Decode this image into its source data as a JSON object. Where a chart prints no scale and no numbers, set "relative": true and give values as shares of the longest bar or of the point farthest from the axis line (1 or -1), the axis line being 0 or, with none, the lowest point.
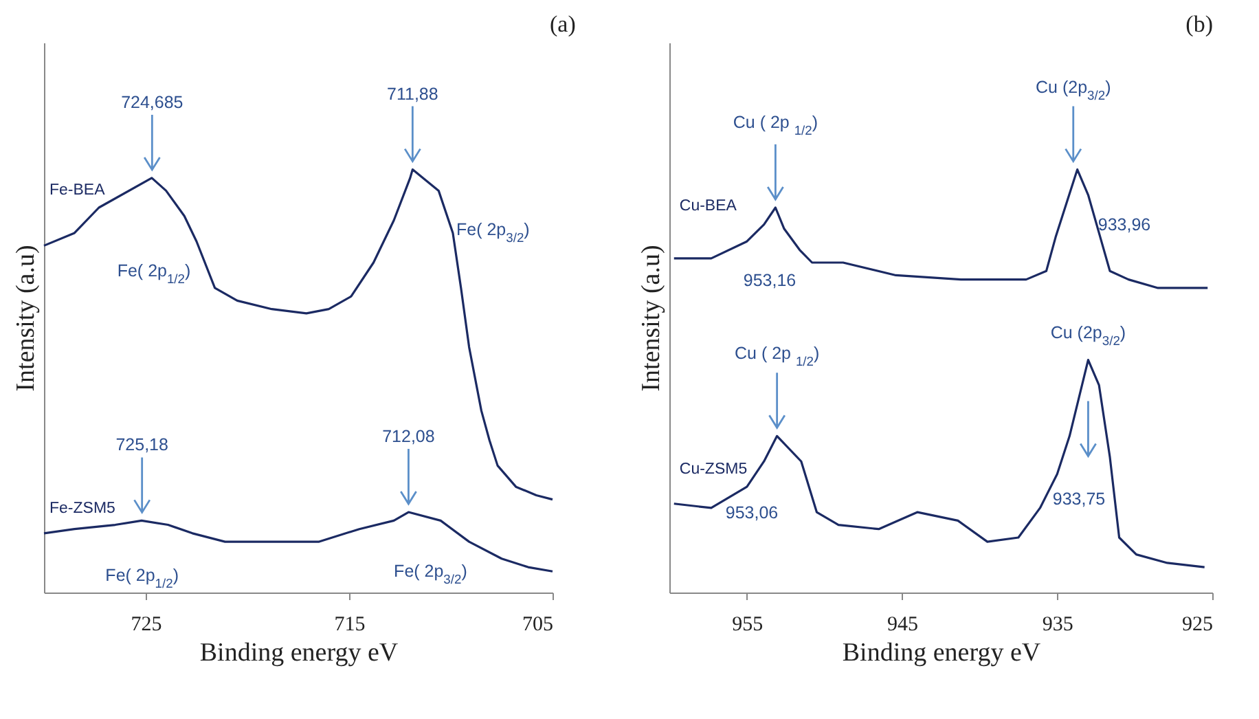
{
  "chart_data": [
    {
      "type": "line",
      "title": "(a)",
      "xlabel": "Binding energy eV",
      "ylabel": "Intensity (a.u)",
      "relative": true,
      "xlim": [
        730,
        705
      ],
      "xticks": [
        725,
        715,
        705
      ],
      "legend": false,
      "grid": false,
      "series": [
        {
          "name": "Fe-BEA",
          "color": "#1b2a63",
          "x": [
            730,
            728.5,
            727.3,
            724.7,
            724.0,
            723.1,
            722.5,
            721.6,
            720.5,
            718.8,
            717.1,
            716.0,
            714.9,
            713.8,
            712.8,
            712.0,
            711.88,
            710.6,
            709.9,
            709.5,
            709.1,
            708.5,
            708.1,
            707.7,
            706.8,
            705.8,
            705.0
          ],
          "values": [
            0.82,
            0.85,
            0.91,
            0.98,
            0.95,
            0.89,
            0.83,
            0.72,
            0.69,
            0.67,
            0.66,
            0.67,
            0.7,
            0.78,
            0.88,
            0.98,
            1.0,
            0.95,
            0.85,
            0.72,
            0.58,
            0.43,
            0.36,
            0.3,
            0.25,
            0.23,
            0.22
          ]
        },
        {
          "name": "Fe-ZSM5",
          "color": "#1b2a63",
          "x": [
            730,
            728.5,
            726.5,
            725.2,
            723.9,
            722.7,
            721.1,
            718.5,
            716.5,
            714.5,
            712.8,
            712.08,
            710.5,
            709.1,
            707.5,
            706.2,
            705
          ],
          "values": [
            0.14,
            0.15,
            0.16,
            0.17,
            0.16,
            0.14,
            0.12,
            0.12,
            0.12,
            0.15,
            0.17,
            0.19,
            0.17,
            0.12,
            0.08,
            0.06,
            0.05
          ]
        }
      ],
      "annotations": [
        {
          "text": "724,685",
          "x": 724.685,
          "y": 0.98
        },
        {
          "text": "711,88",
          "x": 711.88,
          "y": 1.0
        },
        {
          "text": "725,18",
          "x": 725.18,
          "y": 0.17
        },
        {
          "text": "712,08",
          "x": 712.08,
          "y": 0.19
        },
        "Fe( 2p$_{1/2}$)",
        "Fe( 2p$_{3/2}$)",
        {
          "text": "Fe( 2p$_{1/2}$)",
          "x": 725.18,
          "y": 0.17
        },
        {
          "text": "Fe( 2p$_{3/2}$)",
          "x": 712.08,
          "y": 0.19
        }
      ]
    },
    {
      "type": "line",
      "title": "(b)",
      "xlabel": "Binding energy eV",
      "ylabel": "Intensity (a.u)",
      "relative": true,
      "xlim": [
        960,
        925
      ],
      "xticks": [
        955,
        945,
        935,
        925
      ],
      "legend": false,
      "grid": false,
      "series": [
        {
          "name": "Cu-BEA",
          "color": "#1b2a63",
          "x": [
            959.7,
            957.3,
            955.0,
            953.9,
            953.16,
            952.6,
            951.6,
            950.8,
            948.8,
            945.4,
            941.2,
            937.0,
            935.7,
            935.1,
            934.4,
            933.7,
            933.0,
            932.3,
            931.6,
            930.4,
            928.5,
            926.8,
            925.3
          ],
          "values": [
            0.79,
            0.79,
            0.83,
            0.87,
            0.91,
            0.86,
            0.81,
            0.78,
            0.78,
            0.75,
            0.74,
            0.74,
            0.76,
            0.84,
            0.92,
            1.0,
            0.94,
            0.85,
            0.76,
            0.74,
            0.72,
            0.72,
            0.72
          ]
        },
        {
          "name": "Cu-ZSM5",
          "color": "#1b2a63",
          "x": [
            959.7,
            957.3,
            955.0,
            953.9,
            953.06,
            951.5,
            950.5,
            949.1,
            946.5,
            944.0,
            941.4,
            939.5,
            937.5,
            936.1,
            935.0,
            934.2,
            933.0,
            932.3,
            931.6,
            931.0,
            929.9,
            927.9,
            925.5
          ],
          "values": [
            0.21,
            0.2,
            0.25,
            0.31,
            0.37,
            0.31,
            0.19,
            0.16,
            0.15,
            0.19,
            0.17,
            0.12,
            0.13,
            0.2,
            0.28,
            0.37,
            0.55,
            0.49,
            0.32,
            0.13,
            0.09,
            0.07,
            0.06
          ]
        }
      ],
      "annotations": [
        {
          "text": "Cu ( 2p $_{1/2}$)",
          "x": 953.16,
          "y": 0.91
        },
        {
          "text": "Cu (2p$_{3/2}$)",
          "x": 933.96,
          "y": 1.0
        },
        "953,16",
        {
          "text": "933,96",
          "x": 933.96,
          "y": 1.0
        },
        {
          "text": "Cu ( 2p $_{1/2}$)",
          "x": 953.06,
          "y": 0.37
        },
        {
          "text": "Cu (2p$_{3/2}$)",
          "x": 933.0,
          "y": 0.55
        },
        "953,06",
        "933,75"
      ]
    }
  ]
}
